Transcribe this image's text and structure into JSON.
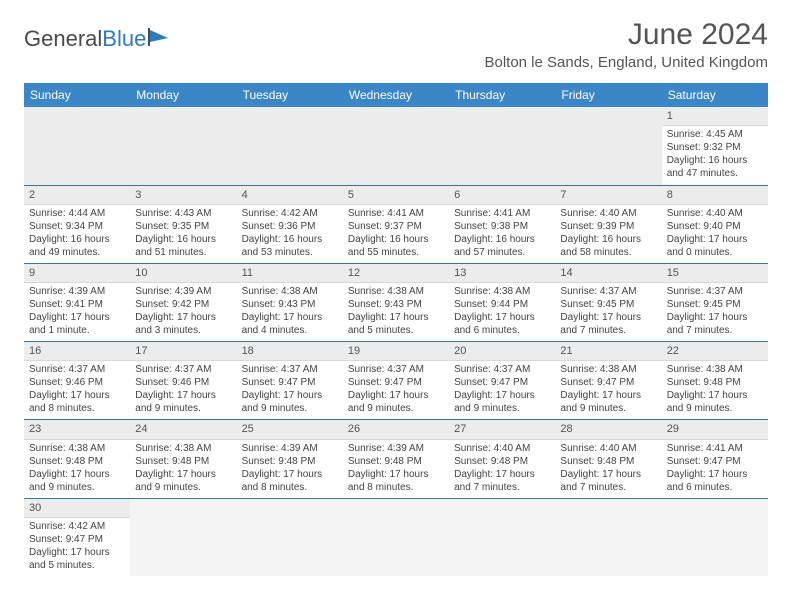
{
  "logo": {
    "text_left": "General",
    "text_right": "Blue"
  },
  "title": "June 2024",
  "location": "Bolton le Sands, England, United Kingdom",
  "colors": {
    "header_bg": "#3b86c6",
    "header_fg": "#ffffff",
    "row_border": "#3b72a8",
    "daynum_bg": "#ececec",
    "logo_accent": "#2b7bbd"
  },
  "day_headers": [
    "Sunday",
    "Monday",
    "Tuesday",
    "Wednesday",
    "Thursday",
    "Friday",
    "Saturday"
  ],
  "weeks": [
    [
      null,
      null,
      null,
      null,
      null,
      null,
      {
        "n": "1",
        "sr": "4:45 AM",
        "ss": "9:32 PM",
        "dl": "16 hours and 47 minutes."
      }
    ],
    [
      {
        "n": "2",
        "sr": "4:44 AM",
        "ss": "9:34 PM",
        "dl": "16 hours and 49 minutes."
      },
      {
        "n": "3",
        "sr": "4:43 AM",
        "ss": "9:35 PM",
        "dl": "16 hours and 51 minutes."
      },
      {
        "n": "4",
        "sr": "4:42 AM",
        "ss": "9:36 PM",
        "dl": "16 hours and 53 minutes."
      },
      {
        "n": "5",
        "sr": "4:41 AM",
        "ss": "9:37 PM",
        "dl": "16 hours and 55 minutes."
      },
      {
        "n": "6",
        "sr": "4:41 AM",
        "ss": "9:38 PM",
        "dl": "16 hours and 57 minutes."
      },
      {
        "n": "7",
        "sr": "4:40 AM",
        "ss": "9:39 PM",
        "dl": "16 hours and 58 minutes."
      },
      {
        "n": "8",
        "sr": "4:40 AM",
        "ss": "9:40 PM",
        "dl": "17 hours and 0 minutes."
      }
    ],
    [
      {
        "n": "9",
        "sr": "4:39 AM",
        "ss": "9:41 PM",
        "dl": "17 hours and 1 minute."
      },
      {
        "n": "10",
        "sr": "4:39 AM",
        "ss": "9:42 PM",
        "dl": "17 hours and 3 minutes."
      },
      {
        "n": "11",
        "sr": "4:38 AM",
        "ss": "9:43 PM",
        "dl": "17 hours and 4 minutes."
      },
      {
        "n": "12",
        "sr": "4:38 AM",
        "ss": "9:43 PM",
        "dl": "17 hours and 5 minutes."
      },
      {
        "n": "13",
        "sr": "4:38 AM",
        "ss": "9:44 PM",
        "dl": "17 hours and 6 minutes."
      },
      {
        "n": "14",
        "sr": "4:37 AM",
        "ss": "9:45 PM",
        "dl": "17 hours and 7 minutes."
      },
      {
        "n": "15",
        "sr": "4:37 AM",
        "ss": "9:45 PM",
        "dl": "17 hours and 7 minutes."
      }
    ],
    [
      {
        "n": "16",
        "sr": "4:37 AM",
        "ss": "9:46 PM",
        "dl": "17 hours and 8 minutes."
      },
      {
        "n": "17",
        "sr": "4:37 AM",
        "ss": "9:46 PM",
        "dl": "17 hours and 9 minutes."
      },
      {
        "n": "18",
        "sr": "4:37 AM",
        "ss": "9:47 PM",
        "dl": "17 hours and 9 minutes."
      },
      {
        "n": "19",
        "sr": "4:37 AM",
        "ss": "9:47 PM",
        "dl": "17 hours and 9 minutes."
      },
      {
        "n": "20",
        "sr": "4:37 AM",
        "ss": "9:47 PM",
        "dl": "17 hours and 9 minutes."
      },
      {
        "n": "21",
        "sr": "4:38 AM",
        "ss": "9:47 PM",
        "dl": "17 hours and 9 minutes."
      },
      {
        "n": "22",
        "sr": "4:38 AM",
        "ss": "9:48 PM",
        "dl": "17 hours and 9 minutes."
      }
    ],
    [
      {
        "n": "23",
        "sr": "4:38 AM",
        "ss": "9:48 PM",
        "dl": "17 hours and 9 minutes."
      },
      {
        "n": "24",
        "sr": "4:38 AM",
        "ss": "9:48 PM",
        "dl": "17 hours and 9 minutes."
      },
      {
        "n": "25",
        "sr": "4:39 AM",
        "ss": "9:48 PM",
        "dl": "17 hours and 8 minutes."
      },
      {
        "n": "26",
        "sr": "4:39 AM",
        "ss": "9:48 PM",
        "dl": "17 hours and 8 minutes."
      },
      {
        "n": "27",
        "sr": "4:40 AM",
        "ss": "9:48 PM",
        "dl": "17 hours and 7 minutes."
      },
      {
        "n": "28",
        "sr": "4:40 AM",
        "ss": "9:48 PM",
        "dl": "17 hours and 7 minutes."
      },
      {
        "n": "29",
        "sr": "4:41 AM",
        "ss": "9:47 PM",
        "dl": "17 hours and 6 minutes."
      }
    ],
    [
      {
        "n": "30",
        "sr": "4:42 AM",
        "ss": "9:47 PM",
        "dl": "17 hours and 5 minutes."
      },
      null,
      null,
      null,
      null,
      null,
      null
    ]
  ],
  "labels": {
    "sunrise": "Sunrise: ",
    "sunset": "Sunset: ",
    "daylight": "Daylight: "
  }
}
